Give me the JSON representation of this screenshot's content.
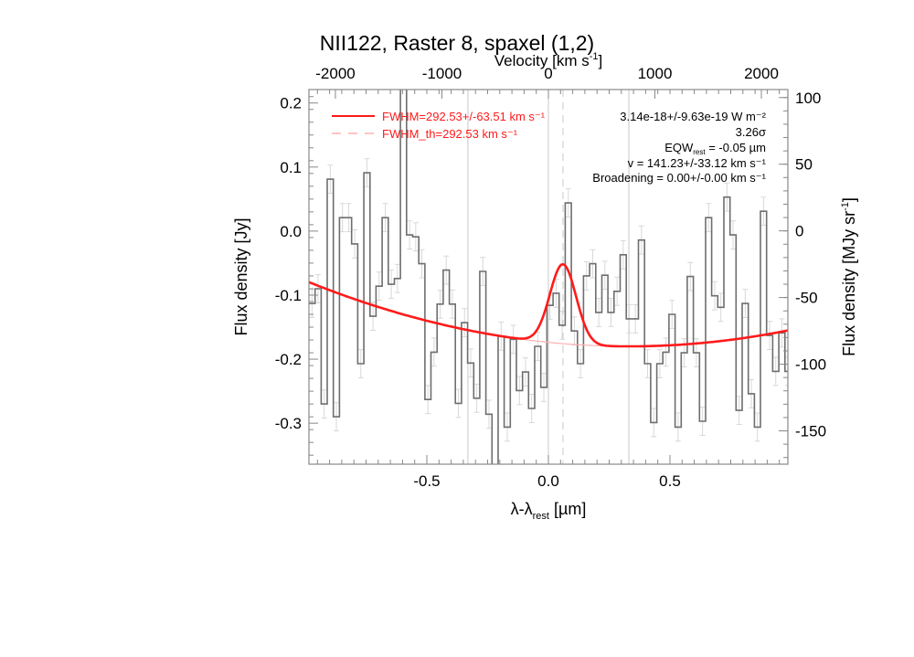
{
  "chart_data": {
    "type": "line",
    "title": "NII122, Raster 8, spaxel (1,2)",
    "xlabel": {
      "main": "λ-λ",
      "sub": "rest",
      "unit": " [µm]"
    },
    "ylabel": "Flux density [Jy]",
    "x2label": {
      "main": "Velocity [km s",
      "sup": "-1",
      "end": "]"
    },
    "y2label": {
      "main": "Flux density [MJy sr",
      "sup": "-1",
      "end": "]"
    },
    "xlim": [
      -0.985,
      0.985
    ],
    "ylim": [
      -0.364,
      0.221
    ],
    "x2lim": [
      -2249,
      2249
    ],
    "y2lim": [
      -175,
      106
    ],
    "xticks": [
      {
        "v": -0.5,
        "label": "-0.5"
      },
      {
        "v": 0.0,
        "label": "0.0"
      },
      {
        "v": 0.5,
        "label": "0.5"
      }
    ],
    "yticks": [
      {
        "v": 0.2,
        "label": "0.2"
      },
      {
        "v": 0.1,
        "label": "0.1"
      },
      {
        "v": 0.0,
        "label": "0.0"
      },
      {
        "v": -0.1,
        "label": "-0.1"
      },
      {
        "v": -0.2,
        "label": "-0.2"
      },
      {
        "v": -0.3,
        "label": "-0.3"
      }
    ],
    "x2ticks": [
      {
        "v": -2000,
        "label": "-2000"
      },
      {
        "v": -1000,
        "label": "-1000"
      },
      {
        "v": 0,
        "label": "0"
      },
      {
        "v": 1000,
        "label": "1000"
      },
      {
        "v": 2000,
        "label": "2000"
      }
    ],
    "y2ticks": [
      {
        "v": 100,
        "label": "100"
      },
      {
        "v": 50,
        "label": "50"
      },
      {
        "v": 0,
        "label": "0"
      },
      {
        "v": -50,
        "label": "-50"
      },
      {
        "v": -100,
        "label": "-100"
      },
      {
        "v": -150,
        "label": "-150"
      }
    ],
    "grid_lines_x": [
      -0.331,
      0.0,
      0.331
    ],
    "line_center_x": 0.06,
    "spectrum": {
      "bin_start": -0.985,
      "bin_width": 0.0251,
      "error": 0.022,
      "flux": [
        -0.113,
        -0.09,
        -0.27,
        0.081,
        -0.29,
        0.021,
        0.021,
        -0.02,
        -0.207,
        0.091,
        -0.133,
        -0.086,
        0.021,
        -0.083,
        -0.074,
        0.35,
        -0.006,
        -0.009,
        -0.051,
        -0.263,
        -0.189,
        -0.114,
        -0.061,
        -0.114,
        -0.269,
        -0.143,
        -0.206,
        -0.261,
        -0.063,
        -0.286,
        -0.4,
        -0.164,
        -0.306,
        -0.169,
        -0.249,
        -0.22,
        -0.277,
        -0.18,
        -0.244,
        -0.116,
        -0.097,
        -0.147,
        0.044,
        -0.156,
        -0.207,
        -0.07,
        -0.051,
        -0.127,
        -0.069,
        -0.127,
        -0.094,
        -0.037,
        -0.137,
        -0.137,
        -0.014,
        -0.207,
        -0.299,
        -0.207,
        -0.189,
        -0.13,
        -0.306,
        -0.19,
        -0.071,
        -0.19,
        -0.297,
        0.021,
        -0.101,
        -0.119,
        0.053,
        -0.006,
        -0.28,
        -0.113,
        -0.254,
        -0.306,
        0.031,
        -0.163,
        -0.219,
        -0.159,
        -0.219
      ]
    },
    "fit": {
      "continuum": {
        "min_x": 0.33,
        "min_y": -0.18,
        "curvature": 0.058
      },
      "gaussian": {
        "center": 0.06,
        "amplitude": 0.124,
        "sigma": 0.054
      }
    },
    "colors": {
      "fit": "#ff1a1a",
      "fit_th": "#ffb0b0",
      "spectrum": "#6e6e6e",
      "errors": "#d8d8d8",
      "grid": "#c8c8c8"
    },
    "legend": {
      "fit_label": "FWHM=292.53+/-63.51 km s⁻¹",
      "fit_th_label": "FWHM_th=292.53 km s⁻¹",
      "flux": "3.14e-18+/-9.63e-19 W m⁻²",
      "snr": "3.26σ",
      "eqw": {
        "label": "EQW",
        "sub": "rest",
        "value": " = -0.05 µm"
      },
      "velocity": "v = 141.23+/-33.12 km s⁻¹",
      "broadening": "Broadening = 0.00+/-0.00 km s⁻¹"
    }
  }
}
